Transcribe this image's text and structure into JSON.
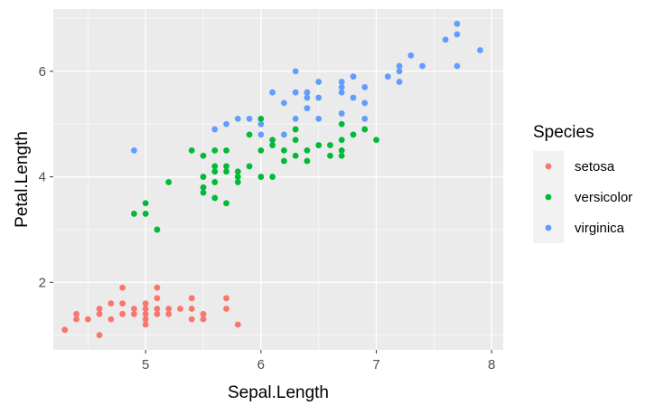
{
  "chart_data": {
    "type": "scatter",
    "xlabel": "Sepal.Length",
    "ylabel": "Petal.Length",
    "xlim": [
      4.2,
      8.1
    ],
    "ylim": [
      0.72,
      7.18
    ],
    "xticks": [
      5,
      6,
      7,
      8
    ],
    "yticks": [
      2,
      4,
      6
    ],
    "background": "#ebebeb",
    "grid": true,
    "legend": {
      "title": "Species",
      "placement": "right"
    },
    "series": [
      {
        "name": "setosa",
        "color": "#f8766d",
        "points": [
          [
            4.3,
            1.1
          ],
          [
            4.4,
            1.3
          ],
          [
            4.4,
            1.4
          ],
          [
            4.5,
            1.3
          ],
          [
            4.6,
            1.0
          ],
          [
            4.6,
            1.4
          ],
          [
            4.6,
            1.5
          ],
          [
            4.7,
            1.3
          ],
          [
            4.7,
            1.6
          ],
          [
            4.8,
            1.4
          ],
          [
            4.8,
            1.6
          ],
          [
            4.8,
            1.9
          ],
          [
            4.9,
            1.4
          ],
          [
            4.9,
            1.5
          ],
          [
            5.0,
            1.2
          ],
          [
            5.0,
            1.3
          ],
          [
            5.0,
            1.4
          ],
          [
            5.0,
            1.5
          ],
          [
            5.0,
            1.6
          ],
          [
            5.1,
            1.4
          ],
          [
            5.1,
            1.5
          ],
          [
            5.1,
            1.7
          ],
          [
            5.1,
            1.9
          ],
          [
            5.2,
            1.4
          ],
          [
            5.2,
            1.5
          ],
          [
            5.3,
            1.5
          ],
          [
            5.4,
            1.3
          ],
          [
            5.4,
            1.5
          ],
          [
            5.4,
            1.7
          ],
          [
            5.5,
            1.3
          ],
          [
            5.5,
            1.4
          ],
          [
            5.7,
            1.5
          ],
          [
            5.7,
            1.7
          ],
          [
            5.8,
            1.2
          ]
        ]
      },
      {
        "name": "versicolor",
        "color": "#00ba38",
        "points": [
          [
            4.9,
            3.3
          ],
          [
            5.0,
            3.3
          ],
          [
            5.0,
            3.5
          ],
          [
            5.1,
            3.0
          ],
          [
            5.2,
            3.9
          ],
          [
            5.4,
            4.5
          ],
          [
            5.5,
            3.7
          ],
          [
            5.5,
            3.8
          ],
          [
            5.5,
            4.0
          ],
          [
            5.5,
            4.4
          ],
          [
            5.6,
            3.6
          ],
          [
            5.6,
            3.9
          ],
          [
            5.6,
            4.1
          ],
          [
            5.6,
            4.2
          ],
          [
            5.6,
            4.5
          ],
          [
            5.7,
            3.5
          ],
          [
            5.7,
            4.1
          ],
          [
            5.7,
            4.2
          ],
          [
            5.7,
            4.5
          ],
          [
            5.8,
            3.9
          ],
          [
            5.8,
            4.0
          ],
          [
            5.8,
            4.1
          ],
          [
            5.9,
            4.2
          ],
          [
            5.9,
            4.8
          ],
          [
            6.0,
            4.0
          ],
          [
            6.0,
            4.5
          ],
          [
            6.0,
            5.1
          ],
          [
            6.1,
            4.0
          ],
          [
            6.1,
            4.6
          ],
          [
            6.1,
            4.7
          ],
          [
            6.2,
            4.3
          ],
          [
            6.2,
            4.5
          ],
          [
            6.3,
            4.4
          ],
          [
            6.3,
            4.7
          ],
          [
            6.3,
            4.9
          ],
          [
            6.4,
            4.3
          ],
          [
            6.4,
            4.5
          ],
          [
            6.5,
            4.6
          ],
          [
            6.6,
            4.4
          ],
          [
            6.6,
            4.6
          ],
          [
            6.7,
            4.4
          ],
          [
            6.7,
            4.5
          ],
          [
            6.7,
            4.7
          ],
          [
            6.7,
            5.0
          ],
          [
            6.8,
            4.8
          ],
          [
            6.9,
            4.9
          ],
          [
            7.0,
            4.7
          ]
        ]
      },
      {
        "name": "virginica",
        "color": "#619cff",
        "points": [
          [
            4.9,
            4.5
          ],
          [
            5.6,
            4.9
          ],
          [
            5.7,
            5.0
          ],
          [
            5.8,
            5.1
          ],
          [
            5.9,
            5.1
          ],
          [
            6.0,
            4.8
          ],
          [
            6.0,
            5.0
          ],
          [
            6.1,
            5.6
          ],
          [
            6.2,
            4.8
          ],
          [
            6.2,
            5.4
          ],
          [
            6.3,
            5.1
          ],
          [
            6.3,
            5.6
          ],
          [
            6.3,
            6.0
          ],
          [
            6.4,
            5.3
          ],
          [
            6.4,
            5.5
          ],
          [
            6.4,
            5.6
          ],
          [
            6.5,
            5.1
          ],
          [
            6.5,
            5.5
          ],
          [
            6.5,
            5.8
          ],
          [
            6.7,
            5.2
          ],
          [
            6.7,
            5.6
          ],
          [
            6.7,
            5.7
          ],
          [
            6.7,
            5.8
          ],
          [
            6.8,
            5.5
          ],
          [
            6.8,
            5.9
          ],
          [
            6.9,
            5.1
          ],
          [
            6.9,
            5.4
          ],
          [
            6.9,
            5.7
          ],
          [
            7.1,
            5.9
          ],
          [
            7.2,
            5.8
          ],
          [
            7.2,
            6.0
          ],
          [
            7.2,
            6.1
          ],
          [
            7.3,
            6.3
          ],
          [
            7.4,
            6.1
          ],
          [
            7.6,
            6.6
          ],
          [
            7.7,
            6.1
          ],
          [
            7.7,
            6.7
          ],
          [
            7.7,
            6.9
          ],
          [
            7.9,
            6.4
          ]
        ]
      }
    ]
  }
}
